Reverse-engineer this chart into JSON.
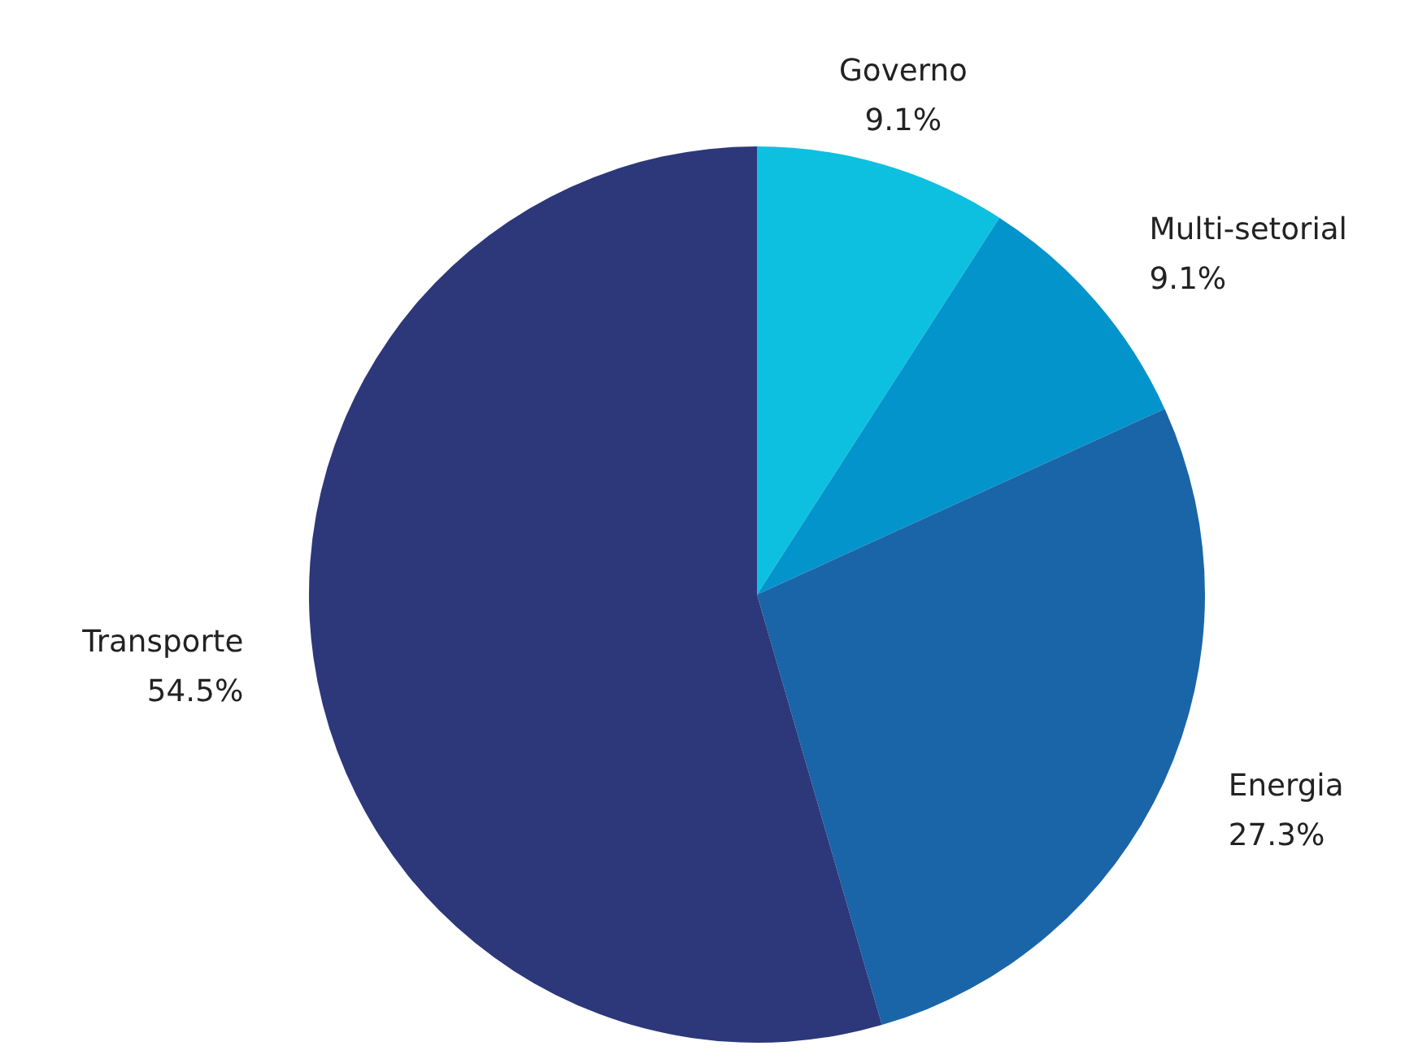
{
  "chart_data": {
    "type": "pie",
    "categories": [
      "Governo",
      "Multi-setorial",
      "Energia",
      "Transporte"
    ],
    "values": [
      9.1,
      9.1,
      27.3,
      54.5
    ],
    "colors": [
      "#0dc0e0",
      "#0494cc",
      "#1a65a8",
      "#2d387a"
    ],
    "value_labels": [
      "9.1%",
      "9.1%",
      "27.3%",
      "54.5%"
    ]
  }
}
